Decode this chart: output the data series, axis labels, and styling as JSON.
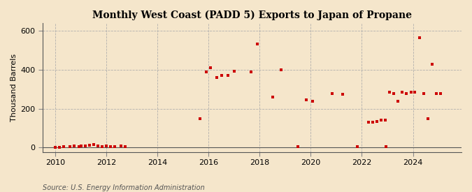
{
  "title": "Monthly West Coast (PADD 5) Exports to Japan of Propane",
  "ylabel": "Thousand Barrels",
  "source": "Source: U.S. Energy Information Administration",
  "background_color": "#f5e6cb",
  "plot_bg_color": "#f5e6cb",
  "marker_color": "#cc0000",
  "marker_size": 12,
  "xlim": [
    2009.5,
    2025.9
  ],
  "ylim": [
    -22,
    640
  ],
  "yticks": [
    0,
    200,
    400,
    600
  ],
  "xticks": [
    2010,
    2012,
    2014,
    2016,
    2018,
    2020,
    2022,
    2024
  ],
  "data": [
    [
      2010.0,
      2
    ],
    [
      2010.17,
      3
    ],
    [
      2010.33,
      4
    ],
    [
      2010.58,
      5
    ],
    [
      2010.75,
      8
    ],
    [
      2010.92,
      5
    ],
    [
      2011.0,
      8
    ],
    [
      2011.17,
      10
    ],
    [
      2011.33,
      13
    ],
    [
      2011.5,
      15
    ],
    [
      2011.67,
      9
    ],
    [
      2011.83,
      5
    ],
    [
      2012.0,
      8
    ],
    [
      2012.17,
      5
    ],
    [
      2012.33,
      5
    ],
    [
      2012.58,
      8
    ],
    [
      2012.75,
      7
    ],
    [
      2015.67,
      150
    ],
    [
      2015.92,
      390
    ],
    [
      2016.08,
      410
    ],
    [
      2016.33,
      360
    ],
    [
      2016.5,
      370
    ],
    [
      2016.75,
      370
    ],
    [
      2017.0,
      395
    ],
    [
      2017.67,
      390
    ],
    [
      2017.92,
      535
    ],
    [
      2018.5,
      260
    ],
    [
      2018.83,
      400
    ],
    [
      2019.5,
      5
    ],
    [
      2019.83,
      245
    ],
    [
      2020.08,
      240
    ],
    [
      2020.83,
      280
    ],
    [
      2021.25,
      275
    ],
    [
      2021.83,
      5
    ],
    [
      2022.25,
      130
    ],
    [
      2022.42,
      130
    ],
    [
      2022.58,
      135
    ],
    [
      2022.75,
      140
    ],
    [
      2022.92,
      140
    ],
    [
      2022.95,
      5
    ],
    [
      2023.08,
      285
    ],
    [
      2023.25,
      280
    ],
    [
      2023.42,
      240
    ],
    [
      2023.58,
      285
    ],
    [
      2023.75,
      280
    ],
    [
      2023.92,
      285
    ],
    [
      2024.08,
      285
    ],
    [
      2024.25,
      565
    ],
    [
      2024.42,
      280
    ],
    [
      2024.58,
      150
    ],
    [
      2024.75,
      430
    ],
    [
      2024.92,
      280
    ],
    [
      2025.08,
      280
    ]
  ]
}
